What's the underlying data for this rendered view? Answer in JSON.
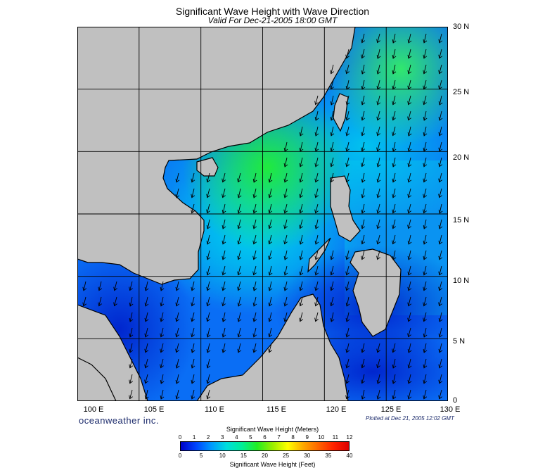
{
  "header": {
    "title": "Significant Wave Height with Wave Direction",
    "subtitle": "Valid For Dec-21-2005 18:00 GMT"
  },
  "map": {
    "lat_labels": [
      "30 N",
      "25 N",
      "20 N",
      "15 N",
      "10 N",
      "5 N",
      "0"
    ],
    "lon_labels": [
      "100 E",
      "105 E",
      "110 E",
      "115 E",
      "120 E",
      "125 E",
      "130 E"
    ],
    "lat_range": [
      0,
      30
    ],
    "lon_range": [
      100,
      130
    ],
    "grid_spacing_deg": 5,
    "land_color": "#c0c0c0",
    "wave_direction": "from north-east, arrows pointing south-west"
  },
  "footer": {
    "brand": "oceanweather inc.",
    "plotted": "Plotted at Dec 21, 2005 12:02 GMT"
  },
  "colorbar": {
    "title_top": "Significant Wave Height (Meters)",
    "title_bottom": "Significant Wave Height (Feet)",
    "meters_ticks": [
      "0",
      "1",
      "2",
      "3",
      "4",
      "5",
      "6",
      "7",
      "8",
      "9",
      "10",
      "11",
      "12"
    ],
    "feet_ticks": [
      "0",
      "5",
      "10",
      "15",
      "20",
      "25",
      "30",
      "35",
      "40"
    ],
    "colors": [
      "#0000c8",
      "#0044ff",
      "#0099ff",
      "#00dddd",
      "#00ee99",
      "#22ee22",
      "#99ee00",
      "#ffff00",
      "#ffaa00",
      "#ff6600",
      "#ff2200",
      "#dd0000"
    ]
  }
}
